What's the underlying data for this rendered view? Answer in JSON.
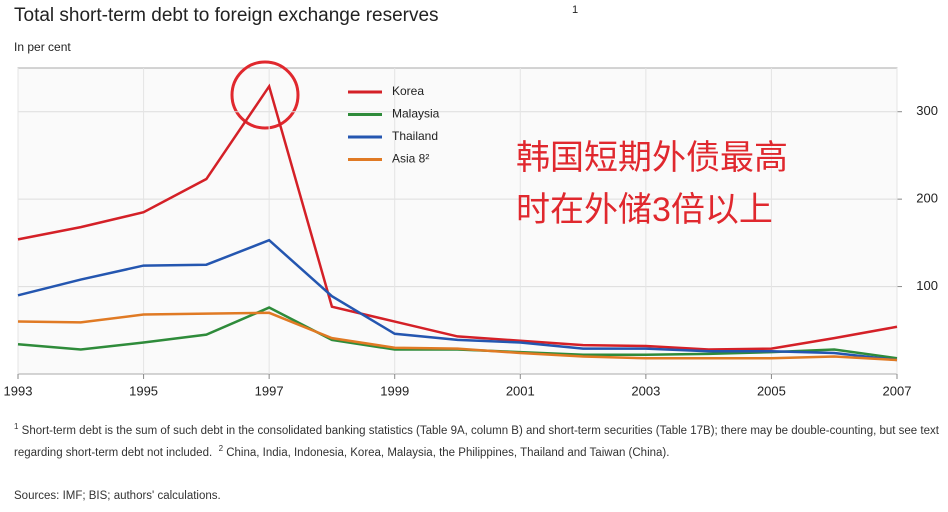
{
  "chart_data": {
    "type": "line",
    "title": "Total short-term debt to foreign exchange reserves",
    "title_note": "1",
    "subtitle": "In per cent",
    "x": [
      1993,
      1994,
      1995,
      1996,
      1997,
      1998,
      1999,
      2000,
      2001,
      2002,
      2003,
      2004,
      2005,
      2006,
      2007
    ],
    "xlim": [
      1993,
      2007
    ],
    "xticks": [
      1993,
      1995,
      1997,
      1999,
      2001,
      2003,
      2005,
      2007
    ],
    "ylim": [
      0,
      350
    ],
    "yticks": [
      100,
      200,
      300
    ],
    "grid": true,
    "series": [
      {
        "name": "Korea",
        "color": "#d42027",
        "values": [
          154,
          168,
          185,
          223,
          329,
          77,
          60,
          43,
          38,
          33,
          32,
          28,
          29,
          41,
          54
        ]
      },
      {
        "name": "Malaysia",
        "color": "#2e8b3a",
        "values": [
          34,
          28,
          36,
          45,
          76,
          39,
          28,
          28,
          25,
          22,
          22,
          23,
          25,
          28,
          18
        ]
      },
      {
        "name": "Thailand",
        "color": "#2456b0",
        "values": [
          90,
          108,
          124,
          125,
          153,
          89,
          46,
          39,
          36,
          29,
          29,
          26,
          26,
          24,
          16
        ]
      },
      {
        "name": "Asia 8²",
        "color": "#e07a24",
        "values": [
          60,
          59,
          68,
          69,
          70,
          41,
          30,
          29,
          24,
          20,
          18,
          18,
          18,
          20,
          16
        ]
      }
    ],
    "annotation": [
      "韩国短期外债最高",
      "时在外储3倍以上"
    ],
    "footnotes": [
      {
        "marker": "1",
        "text": "Short-term debt is the sum of such debt in the consolidated banking statistics (Table 9A, column B) and short-term securities (Table 17B); there may be double-counting, but see text regarding short-term debt not included."
      },
      {
        "marker": "2",
        "text": "China, India, Indonesia, Korea, Malaysia, the Philippines, Thailand and Taiwan (China)."
      }
    ],
    "sources": "Sources: IMF; BIS; authors' calculations."
  }
}
